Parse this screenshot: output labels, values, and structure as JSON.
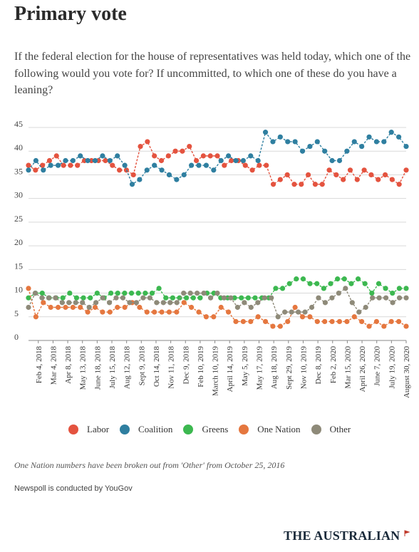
{
  "header": {
    "title": "Primary vote",
    "question": "If the federal election for the house of representatives was held today, which one of the following would you vote for? If uncommitted, to which one of these do you have a leaning?"
  },
  "footer": {
    "note": "One Nation numbers have been broken out from 'Other' from October 25, 2016",
    "source": "Newspoll is conducted by YouGov",
    "brand": "THE AUSTRALIAN",
    "brand_icon": "flag-icon"
  },
  "chart_data": {
    "type": "line",
    "y_ticks": [
      0,
      5,
      10,
      15,
      20,
      25,
      30,
      35,
      40,
      45
    ],
    "ylim": [
      0,
      45
    ],
    "grid": "horizontal",
    "legend_position": "bottom",
    "tick_labels": [
      {
        "index": 2,
        "label": "Feb 4, 2018"
      },
      {
        "index": 5,
        "label": "Mar 4, 2018"
      },
      {
        "index": 8,
        "label": "Apr 8, 2018"
      },
      {
        "index": 11,
        "label": "May 13, 2018"
      },
      {
        "index": 14,
        "label": "June 18, 2018"
      },
      {
        "index": 17,
        "label": "July 15, 2018"
      },
      {
        "index": 20,
        "label": "Aug 12, 2018"
      },
      {
        "index": 23,
        "label": "Sept 9, 2018"
      },
      {
        "index": 26,
        "label": "Oct 14, 2018"
      },
      {
        "index": 29,
        "label": "Nov 11, 2018"
      },
      {
        "index": 32,
        "label": "Dec 9, 2018"
      },
      {
        "index": 35,
        "label": "Feb 10, 2019"
      },
      {
        "index": 38,
        "label": "March 10, 2019"
      },
      {
        "index": 41,
        "label": "April 14, 2019"
      },
      {
        "index": 44,
        "label": "May 5, 2019"
      },
      {
        "index": 47,
        "label": "May 17, 2019"
      },
      {
        "index": 50,
        "label": "Aug 18, 2019"
      },
      {
        "index": 53,
        "label": "Sept 29, 2019"
      },
      {
        "index": 56,
        "label": "Nov 10, 2019"
      },
      {
        "index": 59,
        "label": "Dec 8, 2019"
      },
      {
        "index": 62,
        "label": "Feb 2, 2020"
      },
      {
        "index": 65,
        "label": "Mar 15, 2020"
      },
      {
        "index": 68,
        "label": "April 26, 2020"
      },
      {
        "index": 71,
        "label": "June 7, 2020"
      },
      {
        "index": 74,
        "label": "July 19, 2020"
      },
      {
        "index": 77,
        "label": "August 30, 2020"
      }
    ],
    "series": [
      {
        "name": "Labor",
        "color": "#e4533f",
        "values": [
          37,
          36,
          37,
          38,
          39,
          37,
          37,
          37,
          38,
          38,
          38,
          38,
          37,
          36,
          36,
          35,
          41,
          42,
          39,
          38,
          39,
          40,
          40,
          41,
          38,
          39,
          39,
          39,
          37,
          38,
          38,
          37,
          36,
          37,
          37,
          33,
          34,
          35,
          33,
          33,
          35,
          33,
          33,
          36,
          35,
          34,
          36,
          34,
          36,
          35,
          34,
          35,
          34,
          33,
          36
        ]
      },
      {
        "name": "Coalition",
        "color": "#2f7fa0",
        "values": [
          36,
          38,
          36,
          37,
          37,
          38,
          38,
          39,
          38,
          38,
          39,
          38,
          39,
          37,
          33,
          34,
          36,
          37,
          36,
          35,
          34,
          35,
          37,
          37,
          37,
          36,
          38,
          39,
          38,
          38,
          39,
          38,
          44,
          42,
          43,
          42,
          42,
          40,
          41,
          42,
          40,
          38,
          38,
          40,
          42,
          41,
          43,
          42,
          42,
          44,
          43,
          41
        ]
      },
      {
        "name": "Greens",
        "color": "#3cb850",
        "values": [
          9,
          10,
          10,
          9,
          9,
          9,
          10,
          9,
          9,
          9,
          10,
          9,
          10,
          10,
          10,
          10,
          10,
          10,
          10,
          11,
          9,
          9,
          9,
          9,
          9,
          9,
          10,
          10,
          9,
          9,
          9,
          9,
          9,
          9,
          9,
          9,
          11,
          11,
          12,
          13,
          13,
          12,
          12,
          11,
          12,
          13,
          13,
          12,
          13,
          12,
          10,
          12,
          11,
          10,
          11,
          11
        ]
      },
      {
        "name": "One Nation",
        "color": "#e5773f",
        "values": [
          11,
          5,
          8,
          7,
          7,
          7,
          7,
          7,
          6,
          7,
          6,
          6,
          7,
          7,
          8,
          7,
          6,
          6,
          6,
          6,
          6,
          8,
          7,
          6,
          5,
          5,
          7,
          6,
          4,
          4,
          4,
          5,
          4,
          3,
          3,
          4,
          7,
          5,
          5,
          4,
          4,
          4,
          4,
          4,
          5,
          4,
          3,
          4,
          3,
          4,
          4,
          3
        ]
      },
      {
        "name": "Other",
        "color": "#8e8a79",
        "values": [
          7,
          10,
          9,
          9,
          9,
          8,
          8,
          8,
          8,
          7,
          8,
          9,
          8,
          9,
          9,
          8,
          8,
          9,
          9,
          8,
          8,
          8,
          8,
          10,
          10,
          10,
          10,
          9,
          10,
          9,
          9,
          7,
          8,
          7,
          8,
          9,
          9,
          5,
          6,
          6,
          6,
          6,
          7,
          9,
          8,
          9,
          10,
          11,
          8,
          6,
          7,
          9,
          9,
          9,
          8,
          9,
          9
        ]
      }
    ]
  }
}
